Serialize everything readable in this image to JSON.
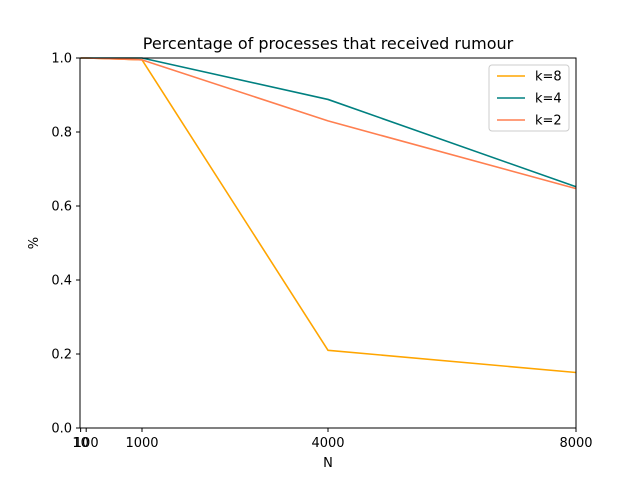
{
  "chart_data": {
    "type": "line",
    "title": "Percentage of processes that received rumour",
    "xlabel": "N",
    "ylabel": "%",
    "x": [
      10,
      100,
      1000,
      4000,
      8000
    ],
    "x_tick_labels": [
      "10",
      "100",
      "1000",
      "4000",
      "8000"
    ],
    "xlim": [
      0,
      8000
    ],
    "ylim": [
      0,
      1.0
    ],
    "y_tick_labels": [
      "0.0",
      "0.2",
      "0.4",
      "0.6",
      "0.8",
      "1.0"
    ],
    "grid": false,
    "legend_position": "top-right",
    "series": [
      {
        "name": "k=8",
        "color": "#ffa500",
        "values": [
          1.0,
          1.0,
          0.995,
          0.21,
          0.15
        ]
      },
      {
        "name": "k=4",
        "color": "#008080",
        "values": [
          1.0,
          1.0,
          1.0,
          0.888,
          0.652
        ]
      },
      {
        "name": "k=2",
        "color": "#ff7f50",
        "values": [
          1.0,
          1.0,
          0.995,
          0.83,
          0.647
        ]
      }
    ]
  }
}
